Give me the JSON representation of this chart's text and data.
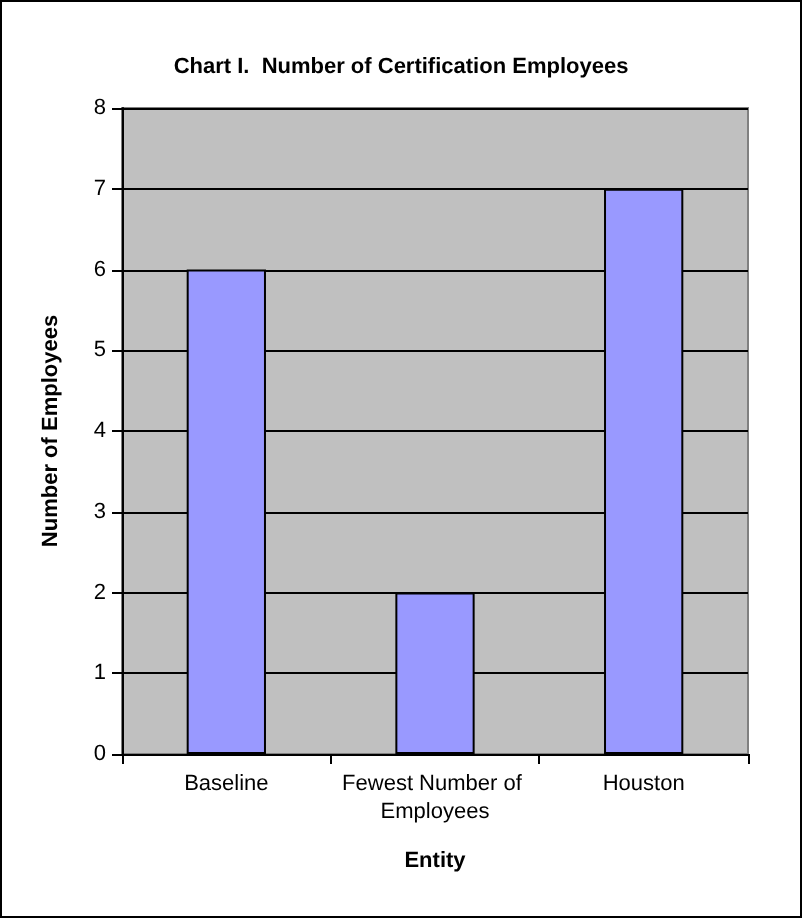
{
  "chart_data": {
    "type": "bar",
    "title": "Chart I.  Number of Certification Employees",
    "xlabel": "Entity",
    "ylabel": "Number of Employees",
    "categories": [
      "Baseline",
      "Fewest Number of Employees",
      "Houston"
    ],
    "values": [
      6,
      2,
      7
    ],
    "color": "#9999ff",
    "ylim": [
      0,
      8
    ],
    "yticks": [
      0,
      1,
      2,
      3,
      4,
      5,
      6,
      7,
      8
    ],
    "grid": "y"
  }
}
